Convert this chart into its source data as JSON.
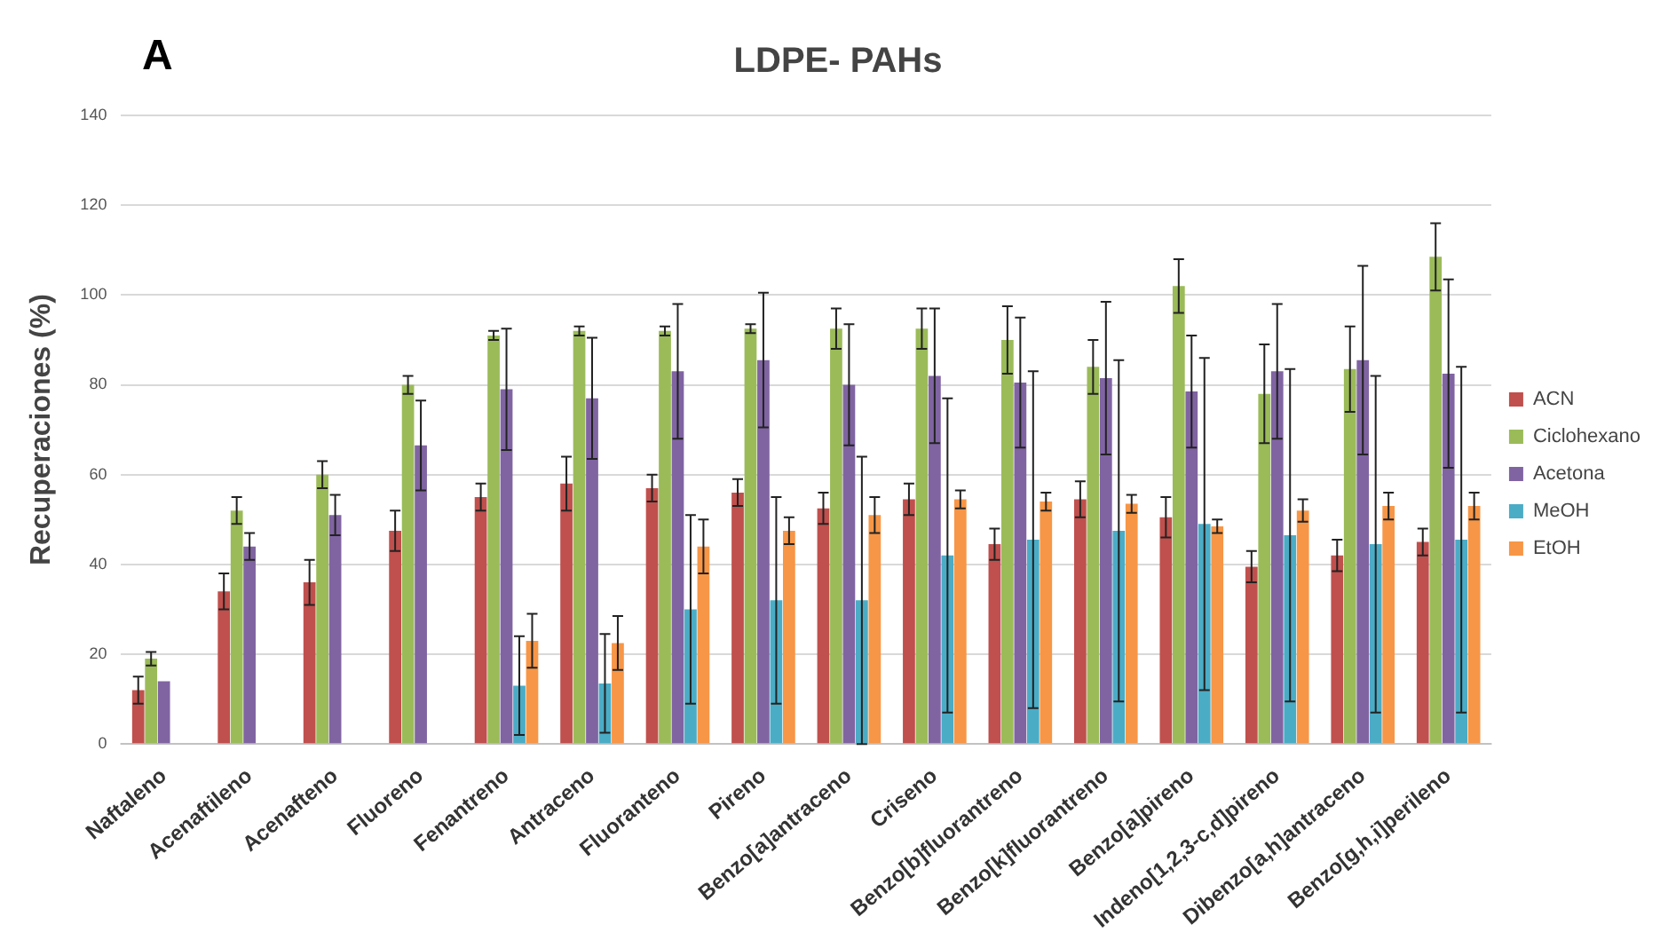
{
  "chart_data": {
    "type": "bar",
    "title": "LDPE- PAHs",
    "ylabel": "Recuperaciones (%)",
    "annotations": [
      "A"
    ],
    "categories": [
      "Naftaleno",
      "Acenaftileno",
      "Acenafteno",
      "Fluoreno",
      "Fenantreno",
      "Antraceno",
      "Fluoranteno",
      "Pireno",
      "Benzo[a]antraceno",
      "Criseno",
      "Benzo[b]fluorantreno",
      "Benzo[k]fluorantreno",
      "Benzo[a]pireno",
      "Indeno[1,2,3-c,d]pireno",
      "Dibenzo[a,h]antraceno",
      "Benzo[g,h,i]perileno"
    ],
    "series": [
      {
        "name": "ACN",
        "color": "#c0504d",
        "values": [
          12,
          34,
          36,
          47.5,
          55,
          58,
          57,
          56,
          52.5,
          54.5,
          44.5,
          54.5,
          50.5,
          39.5,
          42,
          45
        ],
        "errors": [
          3,
          4,
          5,
          4.5,
          3,
          6,
          3,
          3,
          3.5,
          3.5,
          3.5,
          4,
          4.5,
          3.5,
          3.5,
          3
        ]
      },
      {
        "name": "Ciclohexano",
        "color": "#9bbb59",
        "values": [
          19,
          52,
          60,
          80,
          91,
          92,
          92,
          92.5,
          92.5,
          92.5,
          90,
          84,
          102,
          78,
          83.5,
          108.5
        ],
        "errors": [
          1.5,
          3,
          3,
          2,
          1,
          1,
          1,
          1,
          4.5,
          4.5,
          7.5,
          6,
          6,
          11,
          9.5,
          7.5
        ]
      },
      {
        "name": "Acetona",
        "color": "#8064a2",
        "values": [
          14,
          44,
          51,
          66.5,
          79,
          77,
          83,
          85.5,
          80,
          82,
          80.5,
          81.5,
          78.5,
          83,
          85.5,
          82.5
        ],
        "errors": [
          null,
          3,
          4.5,
          10,
          13.5,
          13.5,
          15,
          15,
          13.5,
          15,
          14.5,
          17,
          12.5,
          15,
          21,
          21
        ]
      },
      {
        "name": "MeOH",
        "color": "#4bacc6",
        "values": [
          null,
          null,
          null,
          null,
          13,
          13.5,
          30,
          32,
          32,
          42,
          45.5,
          47.5,
          49,
          46.5,
          44.5,
          45.5
        ],
        "errors": [
          null,
          null,
          null,
          null,
          11,
          11,
          21,
          23,
          32,
          35,
          37.5,
          38,
          37,
          37,
          37.5,
          38.5
        ]
      },
      {
        "name": "EtOH",
        "color": "#f79646",
        "values": [
          null,
          null,
          null,
          null,
          23,
          22.5,
          44,
          47.5,
          51,
          54.5,
          54,
          53.5,
          48.5,
          52,
          53,
          53
        ],
        "errors": [
          null,
          null,
          null,
          null,
          6,
          6,
          6,
          3,
          4,
          2,
          2,
          2,
          1.5,
          2.5,
          3,
          3
        ]
      }
    ],
    "ylim": [
      0,
      140
    ],
    "yticks": [
      0,
      20,
      40,
      60,
      80,
      100,
      120,
      140
    ],
    "grid": "y",
    "legend": "right"
  }
}
